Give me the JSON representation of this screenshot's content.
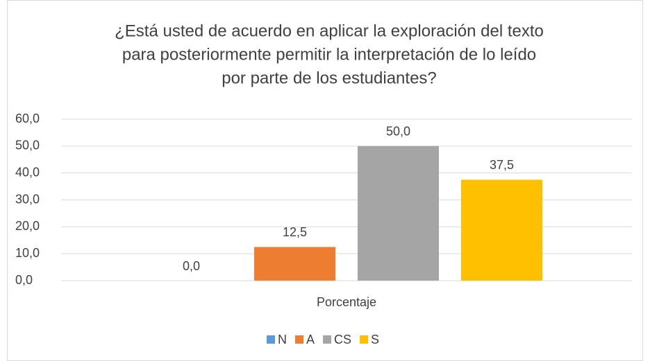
{
  "chart_data": {
    "type": "bar",
    "title": [
      "¿Está usted de acuerdo en aplicar la exploración del texto",
      "para posteriormente permitir la interpretación de lo leído",
      "por parte de los estudiantes?"
    ],
    "categories": [
      "Porcentaje"
    ],
    "series": [
      {
        "name": "N",
        "color": "#5b9bd5",
        "values": [
          0.0
        ],
        "value_labels": [
          "0,0"
        ]
      },
      {
        "name": "A",
        "color": "#ed7d31",
        "values": [
          12.5
        ],
        "value_labels": [
          "12,5"
        ]
      },
      {
        "name": "CS",
        "color": "#a5a5a5",
        "values": [
          50.0
        ],
        "value_labels": [
          "50,0"
        ]
      },
      {
        "name": "S",
        "color": "#ffc000",
        "values": [
          37.5
        ],
        "value_labels": [
          "37,5"
        ]
      }
    ],
    "ylim": [
      0,
      60
    ],
    "yticks": [
      {
        "value": 0,
        "label": "0,0"
      },
      {
        "value": 10,
        "label": "10,0"
      },
      {
        "value": 20,
        "label": "20,0"
      },
      {
        "value": 30,
        "label": "30,0"
      },
      {
        "value": 40,
        "label": "40,0"
      },
      {
        "value": 50,
        "label": "50,0"
      },
      {
        "value": 60,
        "label": "60,0"
      }
    ],
    "grid": true,
    "legend": "bottom"
  }
}
